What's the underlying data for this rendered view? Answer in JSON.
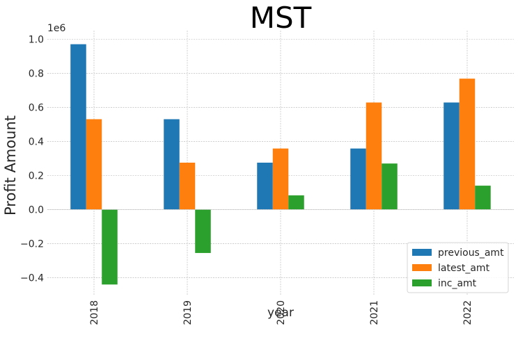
{
  "chart_data": {
    "type": "bar",
    "title": "MST",
    "xlabel": "year",
    "ylabel": "Profit Amount",
    "offset_label": "1e6",
    "categories": [
      "2018",
      "2019",
      "2020",
      "2021",
      "2022"
    ],
    "series": [
      {
        "name": "previous_amt",
        "color": "#1f77b4",
        "values": [
          970000,
          530000,
          275000,
          358000,
          628000
        ]
      },
      {
        "name": "latest_amt",
        "color": "#ff7f0e",
        "values": [
          530000,
          275000,
          358000,
          628000,
          768000
        ]
      },
      {
        "name": "inc_amt",
        "color": "#2ca02c",
        "values": [
          -440000,
          -255000,
          83000,
          270000,
          140000
        ]
      }
    ],
    "ylim": [
      -0.5,
      1.05
    ],
    "yticks": [
      "−0.4",
      "−0.2",
      "0.0",
      "0.2",
      "0.4",
      "0.6",
      "0.8",
      "1.0"
    ],
    "ytick_values": [
      -0.4,
      -0.2,
      0.0,
      0.2,
      0.4,
      0.6,
      0.8,
      1.0
    ],
    "y_scale": 1000000,
    "grid": true,
    "legend_position": "lower-right"
  }
}
